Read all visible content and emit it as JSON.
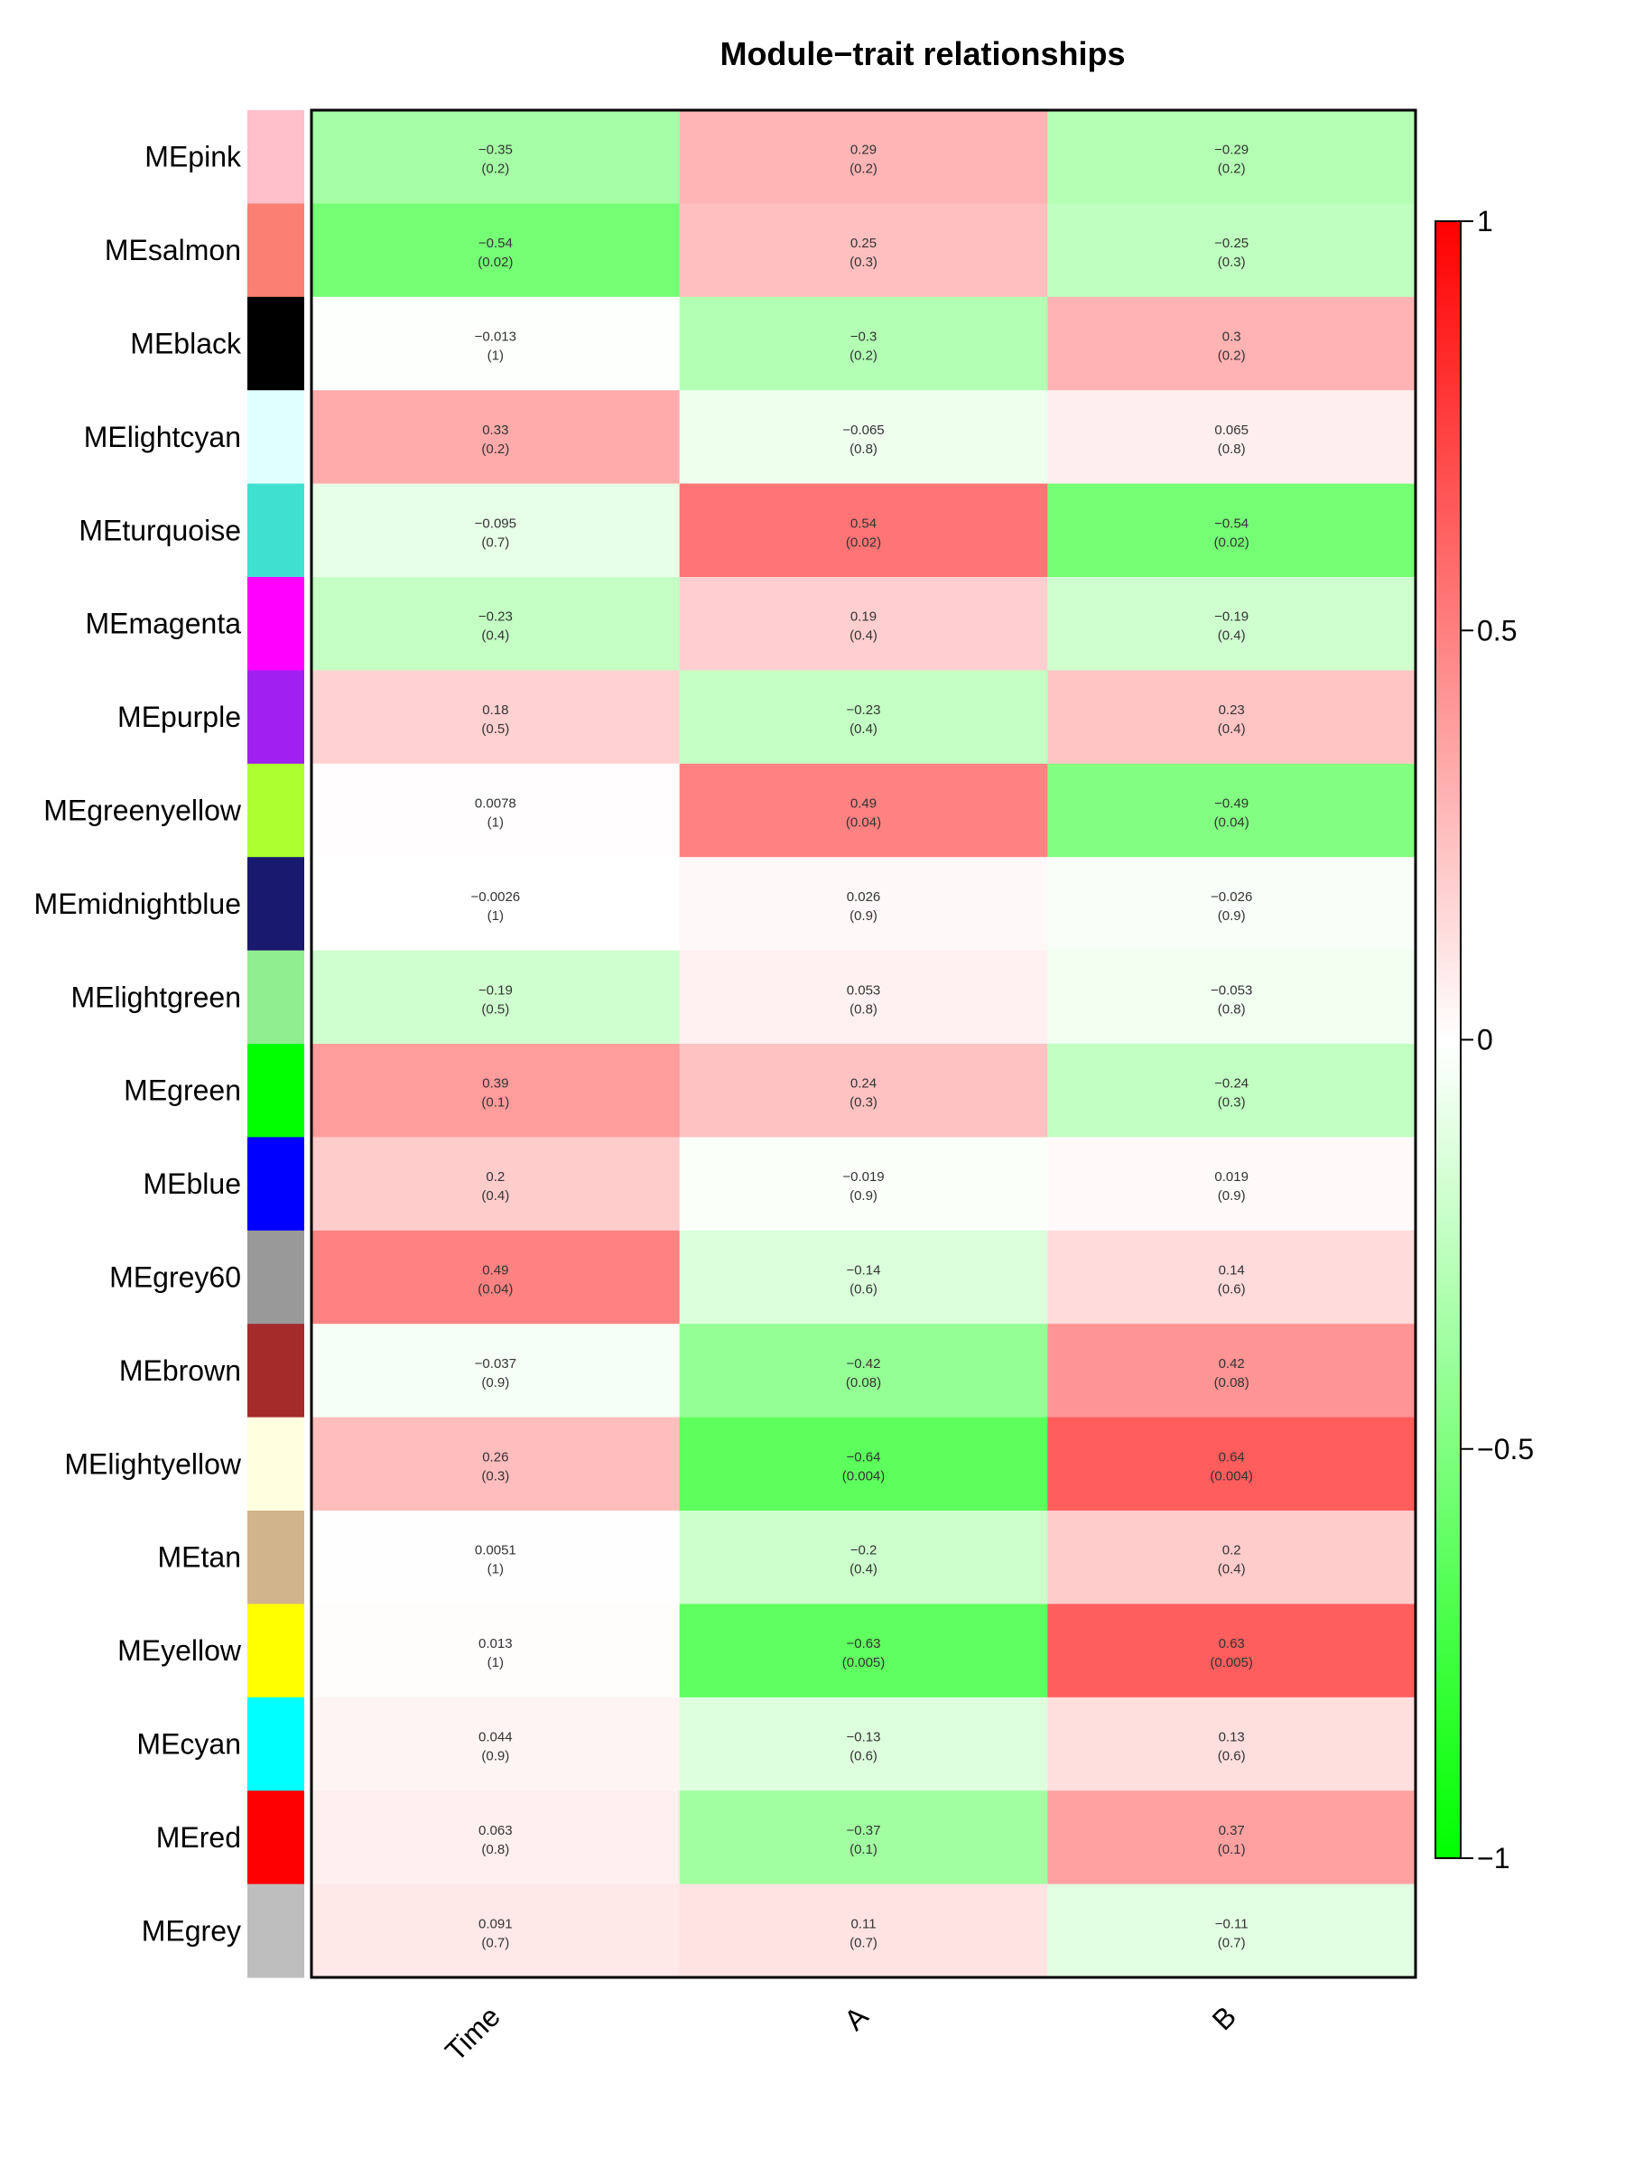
{
  "chart_data": {
    "type": "heatmap",
    "title": "Module−trait relationships",
    "columns": [
      "Time",
      "A",
      "B"
    ],
    "rows": [
      {
        "name": "MEpink",
        "color": "#FFC0CB",
        "values": [
          -0.35,
          0.29,
          -0.29
        ],
        "pvalues": [
          "(0.2)",
          "(0.2)",
          "(0.2)"
        ],
        "labels": [
          "−0.35",
          "0.29",
          "−0.29"
        ]
      },
      {
        "name": "MEsalmon",
        "color": "#FA8072",
        "values": [
          -0.54,
          0.25,
          -0.25
        ],
        "pvalues": [
          "(0.02)",
          "(0.3)",
          "(0.3)"
        ],
        "labels": [
          "−0.54",
          "0.25",
          "−0.25"
        ]
      },
      {
        "name": "MEblack",
        "color": "#000000",
        "values": [
          -0.013,
          -0.3,
          0.3
        ],
        "pvalues": [
          "(1)",
          "(0.2)",
          "(0.2)"
        ],
        "labels": [
          "−0.013",
          "−0.3",
          "0.3"
        ]
      },
      {
        "name": "MElightcyan",
        "color": "#E0FFFF",
        "values": [
          0.33,
          -0.065,
          0.065
        ],
        "pvalues": [
          "(0.2)",
          "(0.8)",
          "(0.8)"
        ],
        "labels": [
          "0.33",
          "−0.065",
          "0.065"
        ]
      },
      {
        "name": "MEturquoise",
        "color": "#40E0D0",
        "values": [
          -0.095,
          0.54,
          -0.54
        ],
        "pvalues": [
          "(0.7)",
          "(0.02)",
          "(0.02)"
        ],
        "labels": [
          "−0.095",
          "0.54",
          "−0.54"
        ]
      },
      {
        "name": "MEmagenta",
        "color": "#FF00FF",
        "values": [
          -0.23,
          0.19,
          -0.19
        ],
        "pvalues": [
          "(0.4)",
          "(0.4)",
          "(0.4)"
        ],
        "labels": [
          "−0.23",
          "0.19",
          "−0.19"
        ]
      },
      {
        "name": "MEpurple",
        "color": "#A020F0",
        "values": [
          0.18,
          -0.23,
          0.23
        ],
        "pvalues": [
          "(0.5)",
          "(0.4)",
          "(0.4)"
        ],
        "labels": [
          "0.18",
          "−0.23",
          "0.23"
        ]
      },
      {
        "name": "MEgreenyellow",
        "color": "#ADFF2F",
        "values": [
          0.0078,
          0.49,
          -0.49
        ],
        "pvalues": [
          "(1)",
          "(0.04)",
          "(0.04)"
        ],
        "labels": [
          "0.0078",
          "0.49",
          "−0.49"
        ]
      },
      {
        "name": "MEmidnightblue",
        "color": "#191970",
        "values": [
          -0.0026,
          0.026,
          -0.026
        ],
        "pvalues": [
          "(1)",
          "(0.9)",
          "(0.9)"
        ],
        "labels": [
          "−0.0026",
          "0.026",
          "−0.026"
        ]
      },
      {
        "name": "MElightgreen",
        "color": "#90EE90",
        "values": [
          -0.19,
          0.053,
          -0.053
        ],
        "pvalues": [
          "(0.5)",
          "(0.8)",
          "(0.8)"
        ],
        "labels": [
          "−0.19",
          "0.053",
          "−0.053"
        ]
      },
      {
        "name": "MEgreen",
        "color": "#00FF00",
        "values": [
          0.39,
          0.24,
          -0.24
        ],
        "pvalues": [
          "(0.1)",
          "(0.3)",
          "(0.3)"
        ],
        "labels": [
          "0.39",
          "0.24",
          "−0.24"
        ]
      },
      {
        "name": "MEblue",
        "color": "#0000FF",
        "values": [
          0.2,
          -0.019,
          0.019
        ],
        "pvalues": [
          "(0.4)",
          "(0.9)",
          "(0.9)"
        ],
        "labels": [
          "0.2",
          "−0.019",
          "0.019"
        ]
      },
      {
        "name": "MEgrey60",
        "color": "#999999",
        "values": [
          0.49,
          -0.14,
          0.14
        ],
        "pvalues": [
          "(0.04)",
          "(0.6)",
          "(0.6)"
        ],
        "labels": [
          "0.49",
          "−0.14",
          "0.14"
        ]
      },
      {
        "name": "MEbrown",
        "color": "#A52A2A",
        "values": [
          -0.037,
          -0.42,
          0.42
        ],
        "pvalues": [
          "(0.9)",
          "(0.08)",
          "(0.08)"
        ],
        "labels": [
          "−0.037",
          "−0.42",
          "0.42"
        ]
      },
      {
        "name": "MElightyellow",
        "color": "#FFFFE0",
        "values": [
          0.26,
          -0.64,
          0.64
        ],
        "pvalues": [
          "(0.3)",
          "(0.004)",
          "(0.004)"
        ],
        "labels": [
          "0.26",
          "−0.64",
          "0.64"
        ]
      },
      {
        "name": "MEtan",
        "color": "#D2B48C",
        "values": [
          0.0051,
          -0.2,
          0.2
        ],
        "pvalues": [
          "(1)",
          "(0.4)",
          "(0.4)"
        ],
        "labels": [
          "0.0051",
          "−0.2",
          "0.2"
        ]
      },
      {
        "name": "MEyellow",
        "color": "#FFFF00",
        "values": [
          0.013,
          -0.63,
          0.63
        ],
        "pvalues": [
          "(1)",
          "(0.005)",
          "(0.005)"
        ],
        "labels": [
          "0.013",
          "−0.63",
          "0.63"
        ]
      },
      {
        "name": "MEcyan",
        "color": "#00FFFF",
        "values": [
          0.044,
          -0.13,
          0.13
        ],
        "pvalues": [
          "(0.9)",
          "(0.6)",
          "(0.6)"
        ],
        "labels": [
          "0.044",
          "−0.13",
          "0.13"
        ]
      },
      {
        "name": "MEred",
        "color": "#FF0000",
        "values": [
          0.063,
          -0.37,
          0.37
        ],
        "pvalues": [
          "(0.8)",
          "(0.1)",
          "(0.1)"
        ],
        "labels": [
          "0.063",
          "−0.37",
          "0.37"
        ]
      },
      {
        "name": "MEgrey",
        "color": "#BEBEBE",
        "values": [
          0.091,
          0.11,
          -0.11
        ],
        "pvalues": [
          "(0.7)",
          "(0.7)",
          "(0.7)"
        ],
        "labels": [
          "0.091",
          "0.11",
          "−0.11"
        ]
      }
    ],
    "color_scale": {
      "min": -1,
      "max": 1,
      "low_color": "#00FF00",
      "mid_color": "#FFFFFF",
      "high_color": "#FF0000",
      "ticks": [
        1,
        0.5,
        0,
        -0.5,
        -1
      ],
      "tick_labels": [
        "1",
        "0.5",
        "0",
        "−0.5",
        "−1"
      ]
    },
    "legend_position": "right"
  }
}
